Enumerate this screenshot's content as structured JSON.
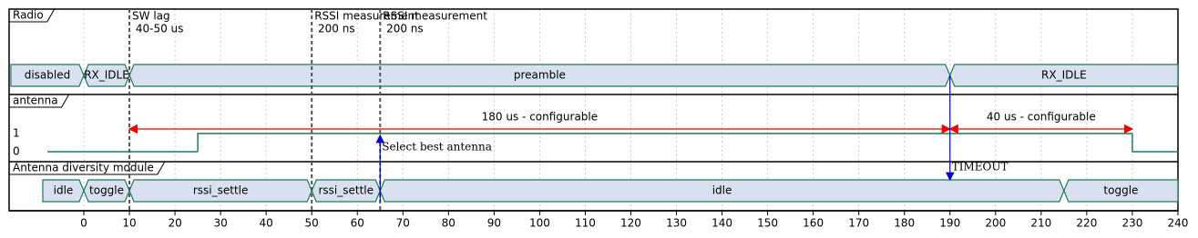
{
  "lanes": [
    {
      "label": "Radio",
      "states": [
        {
          "label": "disabled",
          "from": -16,
          "to": 0
        },
        {
          "label": "RX_IDLE",
          "from": 0,
          "to": 10
        },
        {
          "label": "preamble",
          "from": 10,
          "to": 190
        },
        {
          "label": "RX_IDLE",
          "from": 190,
          "to": 240
        }
      ]
    },
    {
      "label": "antenna",
      "levels": [
        1,
        0
      ],
      "steps": [
        {
          "from": -8,
          "to": 25,
          "level": 0
        },
        {
          "from": 25,
          "to": 230,
          "level": 1
        },
        {
          "from": 230,
          "to": 240,
          "level": 0
        }
      ]
    },
    {
      "label": "Antenna diversity module",
      "states": [
        {
          "label": "idle",
          "from": -9,
          "to": 0
        },
        {
          "label": "toggle",
          "from": 0,
          "to": 10
        },
        {
          "label": "rssi_settle",
          "from": 10,
          "to": 50
        },
        {
          "label": "rssi_settle",
          "from": 50,
          "to": 65
        },
        {
          "label": "idle",
          "from": 65,
          "to": 215
        },
        {
          "label": "toggle",
          "from": 215,
          "to": 240
        }
      ]
    }
  ],
  "markers": [
    {
      "time": 10,
      "note": [
        "SW lag",
        " 40-50 us"
      ]
    },
    {
      "time": 50,
      "note": [
        "RSSI measurement",
        " 200 ns"
      ]
    },
    {
      "time": 65,
      "note": [
        "RSSI measurement",
        " 200 ns"
      ]
    }
  ],
  "spans": [
    {
      "from": 10,
      "to": 190,
      "label": "180 us - configurable"
    },
    {
      "from": 190,
      "to": 230,
      "label": "40 us - configurable"
    }
  ],
  "messages": [
    {
      "time": 65,
      "label": "Select best antenna",
      "direction": "up"
    },
    {
      "time": 190,
      "label": "TIMEOUT",
      "direction": "down"
    }
  ],
  "axis": {
    "ticks": [
      0,
      10,
      20,
      30,
      40,
      50,
      60,
      70,
      80,
      90,
      100,
      110,
      120,
      130,
      140,
      150,
      160,
      170,
      180,
      190,
      200,
      210,
      220,
      230,
      240
    ]
  }
}
